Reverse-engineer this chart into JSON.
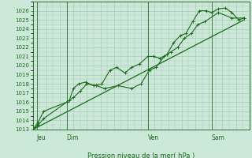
{
  "xlabel": "Pression niveau de la mer( hPa )",
  "bg_color": "#cce8d8",
  "grid_color": "#aacaba",
  "line_color": "#1a6b1a",
  "ylim": [
    1013,
    1027
  ],
  "xlim": [
    0,
    16
  ],
  "yticks": [
    1013,
    1014,
    1015,
    1016,
    1017,
    1018,
    1019,
    1020,
    1021,
    1022,
    1023,
    1024,
    1025,
    1026
  ],
  "day_labels": [
    "Jeu",
    "Dim",
    "Ven",
    "Sam"
  ],
  "day_positions": [
    0.3,
    2.5,
    8.5,
    13.2
  ],
  "vline_positions": [
    0.3,
    2.5,
    8.5,
    13.2
  ],
  "series1_x": [
    0.0,
    0.4,
    0.8,
    2.5,
    2.7,
    3.0,
    3.4,
    3.9,
    4.5,
    5.1,
    5.7,
    6.2,
    6.8,
    7.3,
    7.9,
    8.5,
    8.9,
    9.4,
    9.9,
    10.4,
    10.9,
    11.3,
    11.8,
    12.3,
    12.8,
    13.2,
    13.7,
    14.2,
    14.7,
    15.2,
    15.6
  ],
  "series1_y": [
    1013.0,
    1013.5,
    1014.2,
    1016.0,
    1016.2,
    1017.5,
    1018.0,
    1018.2,
    1017.8,
    1018.0,
    1019.5,
    1019.8,
    1019.2,
    1019.8,
    1020.2,
    1021.0,
    1021.0,
    1020.8,
    1021.2,
    1022.5,
    1023.3,
    1023.5,
    1024.8,
    1026.0,
    1026.0,
    1025.8,
    1026.2,
    1026.3,
    1025.8,
    1025.0,
    1025.2
  ],
  "series2_x": [
    0.0,
    0.4,
    0.8,
    2.5,
    3.0,
    3.5,
    4.0,
    4.7,
    5.3,
    6.3,
    7.3,
    8.0,
    8.6,
    9.1,
    9.7,
    10.2,
    10.7,
    11.2,
    11.7,
    12.2,
    12.7,
    13.7,
    14.7,
    15.6
  ],
  "series2_y": [
    1013.0,
    1013.8,
    1015.0,
    1016.0,
    1016.5,
    1017.2,
    1018.0,
    1017.8,
    1017.5,
    1017.8,
    1017.5,
    1018.0,
    1019.5,
    1019.8,
    1021.0,
    1021.5,
    1022.0,
    1023.0,
    1023.5,
    1024.5,
    1024.8,
    1025.8,
    1025.2,
    1025.2
  ],
  "trend_x": [
    0.0,
    15.6
  ],
  "trend_y": [
    1013.0,
    1025.0
  ]
}
